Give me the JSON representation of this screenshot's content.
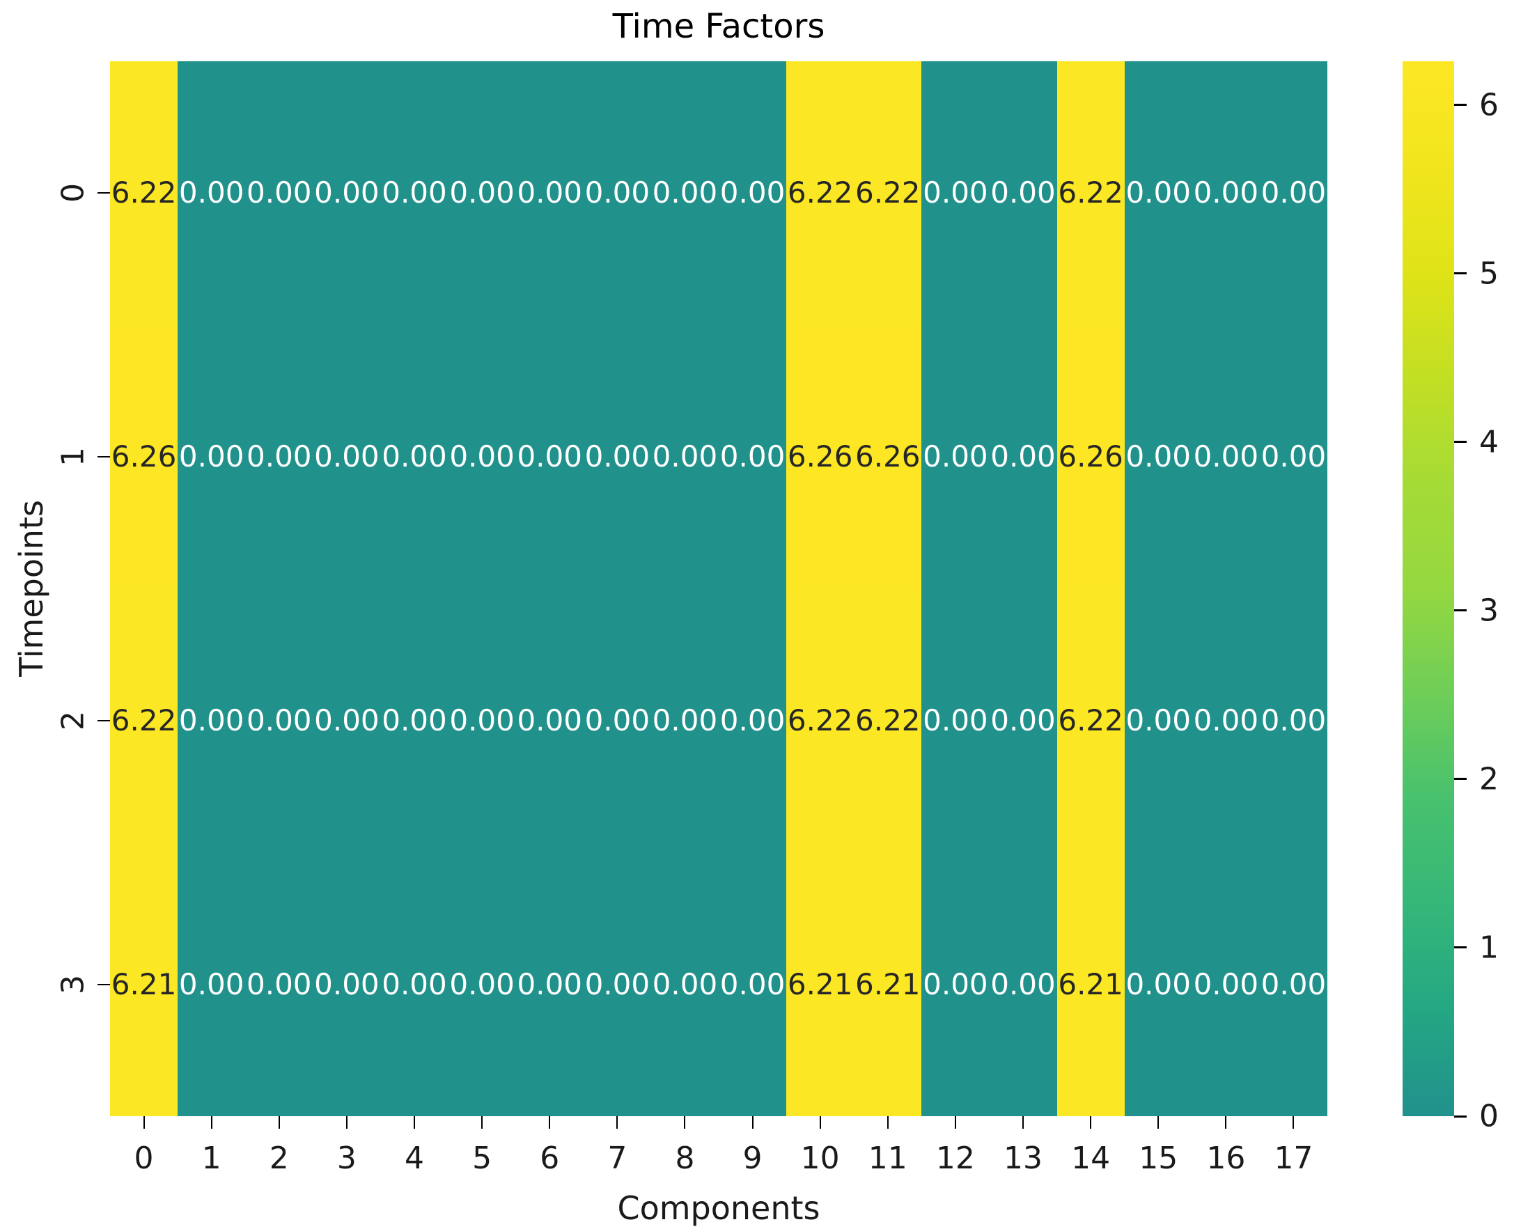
{
  "title": "Time Factors",
  "chart_data": {
    "type": "heatmap",
    "title": "Time Factors",
    "xlabel": "Components",
    "ylabel": "Timepoints",
    "x_ticklabels": [
      "0",
      "1",
      "2",
      "3",
      "4",
      "5",
      "6",
      "7",
      "8",
      "9",
      "10",
      "11",
      "12",
      "13",
      "14",
      "15",
      "16",
      "17"
    ],
    "y_ticklabels": [
      "0",
      "1",
      "2",
      "3"
    ],
    "values": [
      [
        6.22,
        0.0,
        0.0,
        0.0,
        0.0,
        0.0,
        0.0,
        0.0,
        0.0,
        0.0,
        6.22,
        6.22,
        0.0,
        0.0,
        6.22,
        0.0,
        0.0,
        0.0
      ],
      [
        6.26,
        0.0,
        0.0,
        0.0,
        0.0,
        0.0,
        0.0,
        0.0,
        0.0,
        0.0,
        6.26,
        6.26,
        0.0,
        0.0,
        6.26,
        0.0,
        0.0,
        0.0
      ],
      [
        6.22,
        0.0,
        0.0,
        0.0,
        0.0,
        0.0,
        0.0,
        0.0,
        0.0,
        0.0,
        6.22,
        6.22,
        0.0,
        0.0,
        6.22,
        0.0,
        0.0,
        0.0
      ],
      [
        6.21,
        0.0,
        0.0,
        0.0,
        0.0,
        0.0,
        0.0,
        0.0,
        0.0,
        0.0,
        6.21,
        6.21,
        0.0,
        0.0,
        6.21,
        0.0,
        0.0,
        0.0
      ]
    ],
    "annotation_decimals": 2,
    "vmin": 0,
    "vmax": 6.26,
    "colorbar_ticks": [
      0,
      1,
      2,
      3,
      4,
      5,
      6
    ],
    "legend_position": "right-colorbar",
    "grid": false,
    "palette": {
      "cell_low": "#21918c",
      "cell_high": "#fde725",
      "annot_on_low": "#ffffff",
      "annot_on_high": "#262626",
      "axis_text": "#1a1a1a"
    },
    "colorbar_gradient": [
      {
        "at": 0.0,
        "color": "#21918c"
      },
      {
        "at": 0.1,
        "color": "#24a783"
      },
      {
        "at": 0.2,
        "color": "#35b779"
      },
      {
        "at": 0.3,
        "color": "#48c16e"
      },
      {
        "at": 0.4,
        "color": "#6ece58"
      },
      {
        "at": 0.5,
        "color": "#95d840"
      },
      {
        "at": 0.6,
        "color": "#a5db36"
      },
      {
        "at": 0.7,
        "color": "#c2df23"
      },
      {
        "at": 0.8,
        "color": "#dfe318"
      },
      {
        "at": 0.9,
        "color": "#f1e51d"
      },
      {
        "at": 1.0,
        "color": "#fde725"
      }
    ]
  }
}
